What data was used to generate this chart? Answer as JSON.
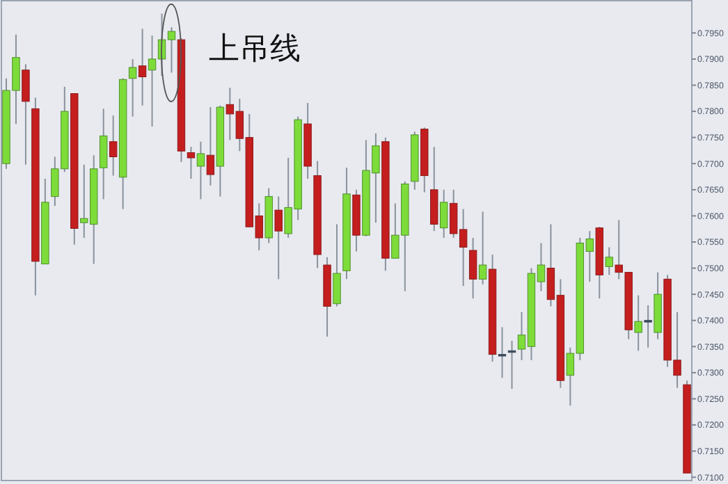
{
  "chart_data": {
    "type": "candlestick",
    "annotations": [
      "上吊线"
    ],
    "categories": [
      null,
      null,
      null,
      null,
      null,
      null,
      null,
      null,
      null,
      null,
      null,
      null,
      null,
      null,
      null,
      null,
      null,
      null,
      null,
      null,
      null,
      null,
      null,
      null,
      null,
      null,
      null,
      null,
      null,
      null,
      null,
      null,
      null,
      null,
      null,
      null,
      null,
      null,
      null,
      null,
      null,
      null,
      null,
      null,
      null,
      null,
      null,
      null,
      null,
      null,
      null,
      null,
      null,
      null,
      null,
      null,
      null,
      null,
      null,
      null,
      null,
      null,
      null,
      null,
      null,
      null,
      null,
      null,
      null,
      null,
      null
    ],
    "ohlc": [
      [
        0.77,
        0.7863,
        0.769,
        0.784
      ],
      [
        0.784,
        0.7947,
        0.7776,
        0.7903
      ],
      [
        0.7879,
        0.789,
        0.7698,
        0.7819
      ],
      [
        0.7805,
        0.7826,
        0.7448,
        0.7513
      ],
      [
        0.7508,
        0.7671,
        0.7508,
        0.7626
      ],
      [
        0.7637,
        0.7713,
        0.7619,
        0.769
      ],
      [
        0.769,
        0.7847,
        0.7684,
        0.78
      ],
      [
        0.7834,
        0.7834,
        0.7545,
        0.7576
      ],
      [
        0.7587,
        0.7698,
        0.7558,
        0.7595
      ],
      [
        0.7584,
        0.7716,
        0.7508,
        0.769
      ],
      [
        0.7692,
        0.7805,
        0.7632,
        0.7753
      ],
      [
        0.7742,
        0.7792,
        0.7677,
        0.7713
      ],
      [
        0.7674,
        0.7863,
        0.7613,
        0.7861
      ],
      [
        0.7863,
        0.79,
        0.779,
        0.7884
      ],
      [
        0.7887,
        0.7958,
        0.7811,
        0.7866
      ],
      [
        0.7879,
        0.7945,
        0.7771,
        0.79
      ],
      [
        0.79,
        0.7987,
        0.7868,
        0.7937
      ],
      [
        0.7937,
        0.7961,
        0.7874,
        0.7953
      ],
      [
        0.7937,
        0.794,
        0.7703,
        0.7724
      ],
      [
        0.7721,
        0.7732,
        0.7671,
        0.7711
      ],
      [
        0.7695,
        0.7742,
        0.7632,
        0.7719
      ],
      [
        0.7716,
        0.7808,
        0.7658,
        0.7679
      ],
      [
        0.7695,
        0.7811,
        0.7637,
        0.7808
      ],
      [
        0.7813,
        0.7845,
        0.7745,
        0.7795
      ],
      [
        0.78,
        0.7824,
        0.7724,
        0.7748
      ],
      [
        0.775,
        0.7795,
        0.7579,
        0.7579
      ],
      [
        0.76,
        0.7624,
        0.7534,
        0.7558
      ],
      [
        0.7558,
        0.7653,
        0.7548,
        0.7637
      ],
      [
        0.7611,
        0.7637,
        0.7479,
        0.7571
      ],
      [
        0.7566,
        0.7711,
        0.7558,
        0.7616
      ],
      [
        0.7613,
        0.779,
        0.7592,
        0.7784
      ],
      [
        0.7776,
        0.7816,
        0.7671,
        0.7695
      ],
      [
        0.7677,
        0.7705,
        0.75,
        0.7526
      ],
      [
        0.7506,
        0.7521,
        0.7369,
        0.7427
      ],
      [
        0.7432,
        0.7584,
        0.7427,
        0.749
      ],
      [
        0.7495,
        0.7692,
        0.7479,
        0.7642
      ],
      [
        0.764,
        0.765,
        0.7532,
        0.7563
      ],
      [
        0.7563,
        0.7745,
        0.7561,
        0.7687
      ],
      [
        0.7682,
        0.7758,
        0.7587,
        0.7734
      ],
      [
        0.7742,
        0.775,
        0.7495,
        0.7519
      ],
      [
        0.7519,
        0.7624,
        0.7519,
        0.7563
      ],
      [
        0.7563,
        0.7666,
        0.7456,
        0.7661
      ],
      [
        0.7666,
        0.7761,
        0.765,
        0.7755
      ],
      [
        0.7766,
        0.7769,
        0.7645,
        0.7677
      ],
      [
        0.765,
        0.7732,
        0.7571,
        0.7584
      ],
      [
        0.7577,
        0.765,
        0.7558,
        0.7626
      ],
      [
        0.7624,
        0.765,
        0.7558,
        0.7566
      ],
      [
        0.7574,
        0.7613,
        0.7466,
        0.754
      ],
      [
        0.7534,
        0.7558,
        0.7442,
        0.7479
      ],
      [
        0.7479,
        0.7608,
        0.7469,
        0.7506
      ],
      [
        0.7498,
        0.7526,
        0.7321,
        0.7335
      ],
      [
        0.7335,
        0.7387,
        0.729,
        0.7335
      ],
      [
        0.7342,
        0.7361,
        0.7269,
        0.7342
      ],
      [
        0.7345,
        0.7416,
        0.7324,
        0.7372
      ],
      [
        0.735,
        0.75,
        0.7324,
        0.749
      ],
      [
        0.7474,
        0.7548,
        0.7456,
        0.7506
      ],
      [
        0.75,
        0.7584,
        0.7427,
        0.744
      ],
      [
        0.7448,
        0.7479,
        0.7271,
        0.7285
      ],
      [
        0.7295,
        0.7348,
        0.7237,
        0.7337
      ],
      [
        0.7337,
        0.7558,
        0.7324,
        0.7548
      ],
      [
        0.7532,
        0.7571,
        0.7474,
        0.7556
      ],
      [
        0.7577,
        0.7579,
        0.7442,
        0.7487
      ],
      [
        0.7503,
        0.754,
        0.7487,
        0.7521
      ],
      [
        0.7506,
        0.7592,
        0.7479,
        0.7492
      ],
      [
        0.7492,
        0.7492,
        0.7364,
        0.7382
      ],
      [
        0.7377,
        0.7448,
        0.7342,
        0.7398
      ],
      [
        0.74,
        0.7429,
        0.7348,
        0.74
      ],
      [
        0.7377,
        0.7492,
        0.7364,
        0.745
      ],
      [
        0.7479,
        0.7487,
        0.7311,
        0.7324
      ],
      [
        0.7324,
        0.7416,
        0.7271,
        0.7295
      ],
      [
        0.7277,
        0.7285,
        0.7108,
        0.7108
      ]
    ],
    "ylim": [
      0.7095,
      0.8013
    ],
    "yticks": [
      {
        "value": 0.71,
        "label": "0.7100"
      },
      {
        "value": 0.715,
        "label": "0.7150"
      },
      {
        "value": 0.72,
        "label": "0.7200"
      },
      {
        "value": 0.725,
        "label": "0.7250"
      },
      {
        "value": 0.73,
        "label": "0.7300"
      },
      {
        "value": 0.735,
        "label": "0.7350"
      },
      {
        "value": 0.74,
        "label": "0.7400"
      },
      {
        "value": 0.745,
        "label": "0.7450"
      },
      {
        "value": 0.75,
        "label": "0.7500"
      },
      {
        "value": 0.755,
        "label": "0.7550"
      },
      {
        "value": 0.76,
        "label": "0.7600"
      },
      {
        "value": 0.765,
        "label": "0.7650"
      },
      {
        "value": 0.77,
        "label": "0.7700"
      },
      {
        "value": 0.775,
        "label": "0.7750"
      },
      {
        "value": 0.78,
        "label": "0.7800"
      },
      {
        "value": 0.785,
        "label": "0.7850"
      },
      {
        "value": 0.79,
        "label": "0.7900"
      },
      {
        "value": 0.795,
        "label": "0.7950"
      }
    ]
  }
}
